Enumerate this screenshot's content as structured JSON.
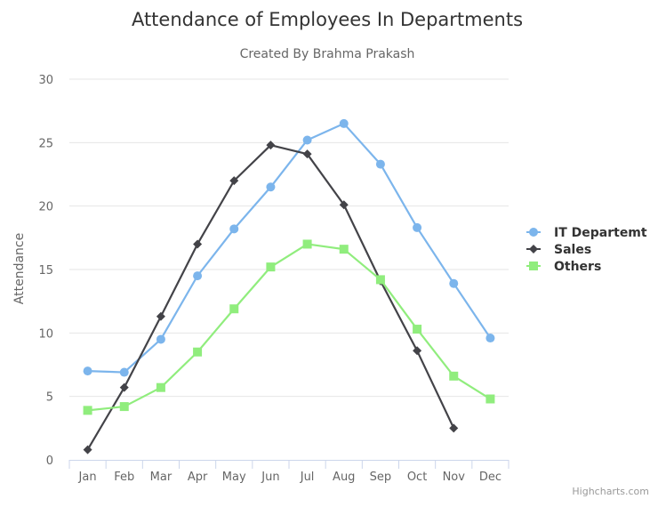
{
  "chart_data": {
    "type": "line",
    "title": "Attendance of Employees In Departments",
    "subtitle": "Created By Brahma Prakash",
    "xlabel": "",
    "ylabel": "Attendance",
    "categories": [
      "Jan",
      "Feb",
      "Mar",
      "Apr",
      "May",
      "Jun",
      "Jul",
      "Aug",
      "Sep",
      "Oct",
      "Nov",
      "Dec"
    ],
    "ylim": [
      0,
      30
    ],
    "yticks": [
      0,
      5,
      10,
      15,
      20,
      25,
      30
    ],
    "grid": true,
    "legend": "right",
    "series": [
      {
        "name": "IT Departemt",
        "marker": "circle",
        "color": "#7cb5ec",
        "values": [
          7.0,
          6.9,
          9.5,
          14.5,
          18.2,
          21.5,
          25.2,
          26.5,
          23.3,
          18.3,
          13.9,
          9.6
        ]
      },
      {
        "name": "Sales",
        "marker": "diamond",
        "color": "#434348",
        "values": [
          0.8,
          5.7,
          11.3,
          17.0,
          22.0,
          24.8,
          24.1,
          20.1,
          14.1,
          8.6,
          2.5,
          null
        ]
      },
      {
        "name": "Others",
        "marker": "square",
        "color": "#90ed7d",
        "values": [
          3.9,
          4.2,
          5.7,
          8.5,
          11.9,
          15.2,
          17.0,
          16.6,
          14.2,
          10.3,
          6.6,
          4.8
        ]
      }
    ]
  },
  "credits": "Highcharts.com"
}
